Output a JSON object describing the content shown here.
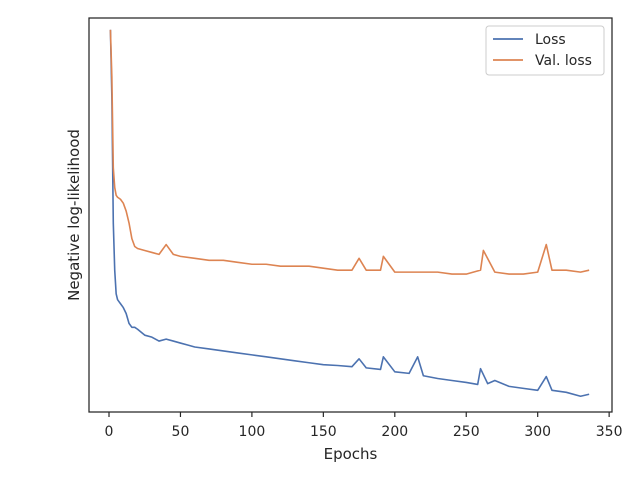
{
  "chart_data": {
    "type": "line",
    "title": "",
    "xlabel": "Epochs",
    "ylabel": "Negative log-likelihood",
    "xlim": [
      -14,
      352
    ],
    "ylim": [
      0,
      1
    ],
    "xticks": [
      "0",
      "50",
      "100",
      "150",
      "200",
      "250",
      "300",
      "350"
    ],
    "yticks_visible": false,
    "grid": false,
    "legend": {
      "placement": "top-right"
    },
    "series": [
      {
        "name": "Loss",
        "color": "#4c72b0",
        "x": [
          1,
          2,
          3,
          4,
          5,
          6,
          7,
          8,
          10,
          12,
          14,
          16,
          18,
          20,
          25,
          30,
          35,
          40,
          45,
          50,
          55,
          60,
          70,
          80,
          90,
          100,
          110,
          120,
          130,
          140,
          150,
          160,
          170,
          175,
          180,
          190,
          192,
          200,
          210,
          216,
          220,
          230,
          240,
          250,
          258,
          260,
          265,
          270,
          280,
          290,
          300,
          306,
          310,
          320,
          330,
          336
        ],
        "y": [
          0.97,
          0.8,
          0.48,
          0.36,
          0.3,
          0.285,
          0.28,
          0.275,
          0.265,
          0.25,
          0.225,
          0.215,
          0.215,
          0.21,
          0.195,
          0.19,
          0.18,
          0.185,
          0.18,
          0.175,
          0.17,
          0.165,
          0.16,
          0.155,
          0.15,
          0.145,
          0.14,
          0.135,
          0.13,
          0.125,
          0.12,
          0.118,
          0.115,
          0.135,
          0.112,
          0.108,
          0.14,
          0.102,
          0.098,
          0.14,
          0.092,
          0.085,
          0.08,
          0.075,
          0.07,
          0.11,
          0.072,
          0.08,
          0.065,
          0.06,
          0.055,
          0.09,
          0.055,
          0.05,
          0.04,
          0.045
        ]
      },
      {
        "name": "Val. loss",
        "color": "#dd8452",
        "x": [
          1,
          2,
          3,
          4,
          5,
          6,
          8,
          10,
          12,
          14,
          16,
          18,
          20,
          25,
          30,
          35,
          40,
          45,
          50,
          60,
          70,
          80,
          90,
          100,
          110,
          120,
          130,
          140,
          150,
          160,
          170,
          175,
          180,
          190,
          192,
          200,
          210,
          220,
          230,
          240,
          250,
          260,
          262,
          270,
          280,
          290,
          300,
          306,
          310,
          320,
          330,
          336
        ],
        "y": [
          0.97,
          0.85,
          0.62,
          0.57,
          0.55,
          0.545,
          0.54,
          0.53,
          0.51,
          0.48,
          0.44,
          0.42,
          0.415,
          0.41,
          0.405,
          0.4,
          0.425,
          0.4,
          0.395,
          0.39,
          0.385,
          0.385,
          0.38,
          0.375,
          0.375,
          0.37,
          0.37,
          0.37,
          0.365,
          0.36,
          0.36,
          0.39,
          0.36,
          0.36,
          0.395,
          0.355,
          0.355,
          0.355,
          0.355,
          0.35,
          0.35,
          0.36,
          0.41,
          0.355,
          0.35,
          0.35,
          0.355,
          0.425,
          0.36,
          0.36,
          0.355,
          0.36
        ]
      }
    ]
  }
}
